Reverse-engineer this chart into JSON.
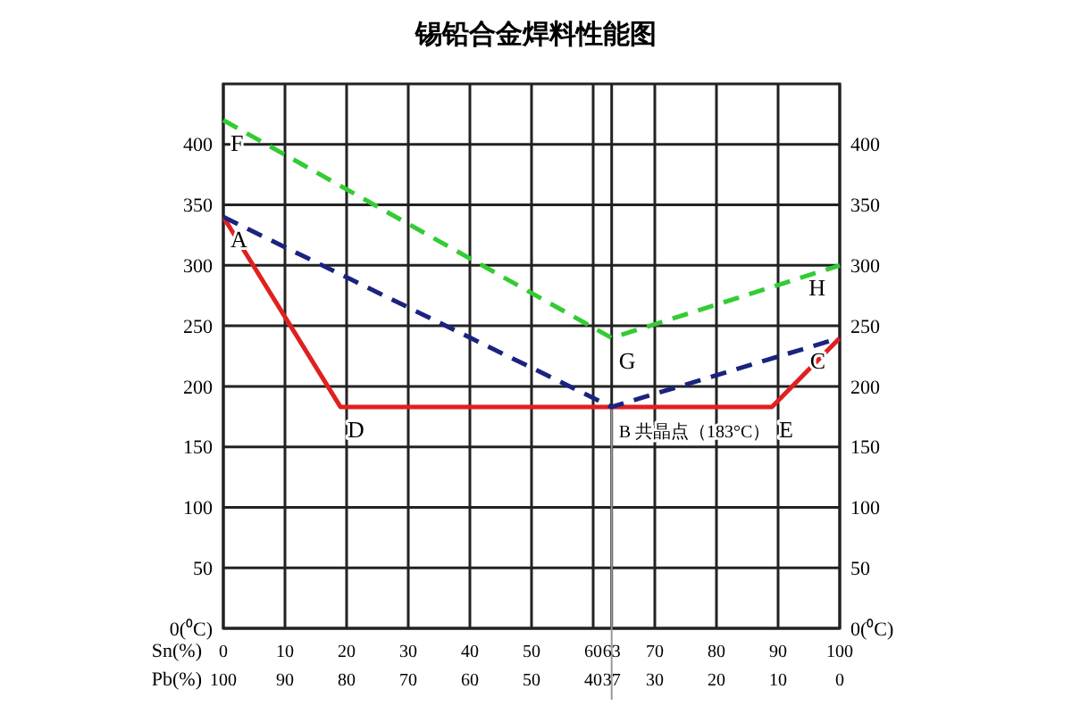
{
  "chart_data": {
    "type": "line",
    "title": "锡铅合金焊料性能图",
    "xlabel": "Sn(%)",
    "x2label": "Pb(%)",
    "xlim": [
      0,
      100
    ],
    "xticks": [
      0,
      10,
      20,
      30,
      40,
      50,
      60,
      63,
      70,
      80,
      90,
      100
    ],
    "x2lim": [
      100,
      0
    ],
    "x2ticks": [
      100,
      90,
      80,
      70,
      60,
      50,
      40,
      37,
      30,
      20,
      10,
      0
    ],
    "ylim": [
      0,
      450
    ],
    "yticks": [
      {
        "value": 0,
        "label": "0(⁰C)"
      },
      50,
      100,
      150,
      200,
      250,
      300,
      350,
      400
    ],
    "y2lim": [
      0,
      450
    ],
    "y2ticks": [
      {
        "value": 0,
        "label": "0(⁰C)"
      },
      50,
      100,
      150,
      200,
      250,
      300,
      350,
      400
    ],
    "grid": true,
    "marker": "none",
    "ref_lines": [
      {
        "axis": "x",
        "value": 63,
        "color": "#999999"
      }
    ],
    "series": [
      {
        "color": "#e02020",
        "line_style": "solid",
        "x": [
          0,
          19,
          89,
          100
        ],
        "values": [
          340,
          183,
          183,
          240
        ]
      },
      {
        "color": "#1a237e",
        "line_style": "dashed",
        "x": [
          0,
          63,
          100
        ],
        "values": [
          340,
          183,
          240
        ]
      },
      {
        "color": "#33cc33",
        "line_style": "dashed",
        "x": [
          0,
          63,
          100
        ],
        "values": [
          420,
          240,
          300
        ]
      }
    ],
    "annotations": [
      {
        "text": "A",
        "x": 0,
        "y": 340
      },
      {
        "text": "D",
        "x": 19,
        "y": 183
      },
      {
        "text": "B 共晶点（183°C）",
        "x": 63,
        "y": 183
      },
      {
        "text": "E",
        "x": 89,
        "y": 183
      },
      {
        "text": "C",
        "x": 100,
        "y": 240
      },
      {
        "text": "F",
        "x": 0,
        "y": 420
      },
      {
        "text": "G",
        "x": 63,
        "y": 240
      },
      {
        "text": "H",
        "x": 100,
        "y": 300
      }
    ]
  }
}
